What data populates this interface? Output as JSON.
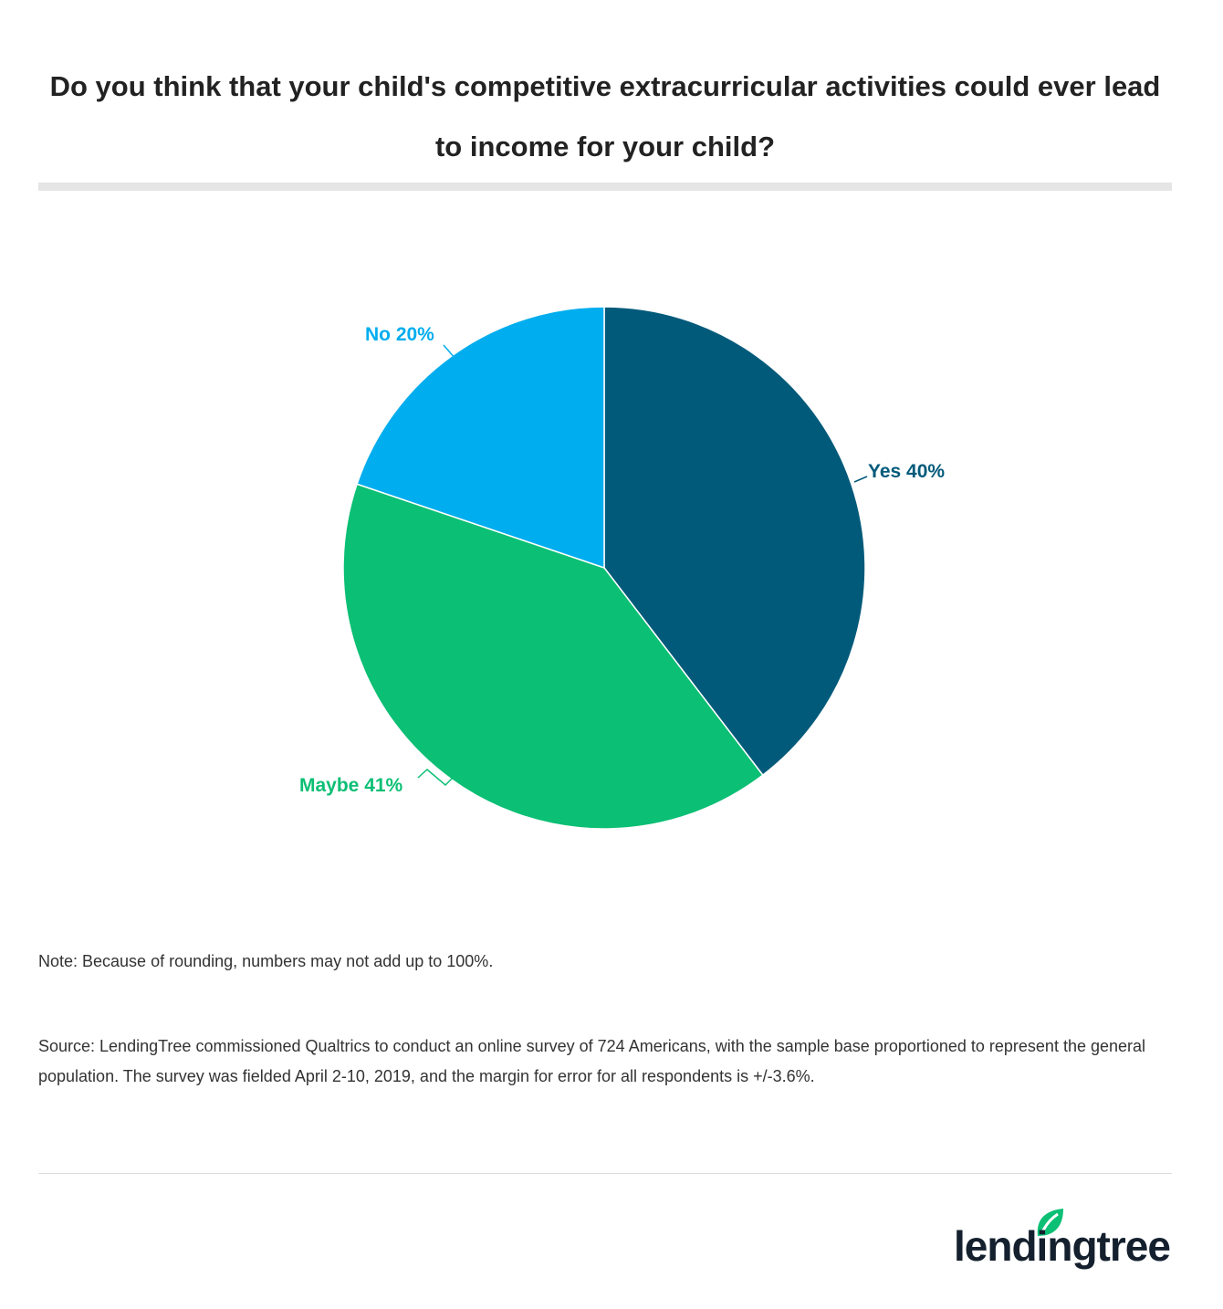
{
  "chart_data": {
    "type": "pie",
    "title": "Do you think that your child's competitive extracurricular activities could ever lead to income for your child?",
    "slices": [
      {
        "label": "Yes",
        "value": 40,
        "display": "Yes 40%",
        "color": "#025a7a"
      },
      {
        "label": "Maybe",
        "value": 41,
        "display": "Maybe 41%",
        "color": "#0bbf74"
      },
      {
        "label": "No",
        "value": 20,
        "display": "No 20%",
        "color": "#00adee"
      }
    ]
  },
  "note": "Note: Because of rounding, numbers may not add up to 100%.",
  "source": "Source: LendingTree commissioned Qualtrics to conduct an online survey of 724 Americans, with the sample base proportioned to represent the general population. The survey was fielded April 2-10, 2019, and the margin for error for all respondents is +/-3.6%.",
  "logo": {
    "text": "lendingtree",
    "leaf_color": "#0bbf74",
    "text_color": "#15202e"
  }
}
